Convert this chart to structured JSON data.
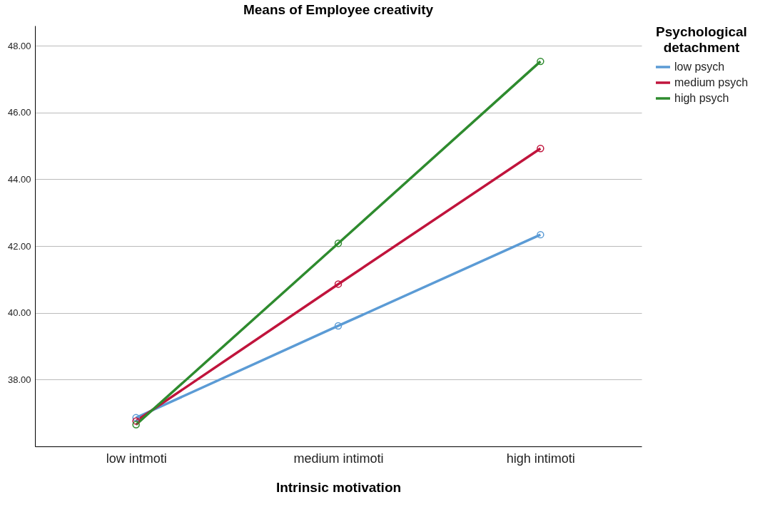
{
  "chart_data": {
    "type": "line",
    "title": "Means of Employee creativity",
    "xlabel": "Intrinsic motivation",
    "legend_title": "Psychological detachment",
    "categories": [
      "low intmoti",
      "medium intimoti",
      "high intimoti"
    ],
    "series": [
      {
        "name": "low psych",
        "color": "#5b9bd5",
        "values": [
          36.86,
          39.61,
          42.34
        ]
      },
      {
        "name": "medium psych",
        "color": "#c0143c",
        "values": [
          36.76,
          40.86,
          44.92
        ]
      },
      {
        "name": "high psych",
        "color": "#2e8b2e",
        "values": [
          36.65,
          42.08,
          47.53
        ]
      }
    ],
    "ylim": [
      36,
      48.6
    ],
    "yticks": [
      {
        "value": 38,
        "label": "38.00"
      },
      {
        "value": 40,
        "label": "40.00"
      },
      {
        "value": 42,
        "label": "42.00"
      },
      {
        "value": 44,
        "label": "44.00"
      },
      {
        "value": 46,
        "label": "46.00"
      },
      {
        "value": 48,
        "label": "48.00"
      }
    ],
    "grid": "y",
    "legend": "top right",
    "marker": "circle",
    "line_style": "solid"
  }
}
